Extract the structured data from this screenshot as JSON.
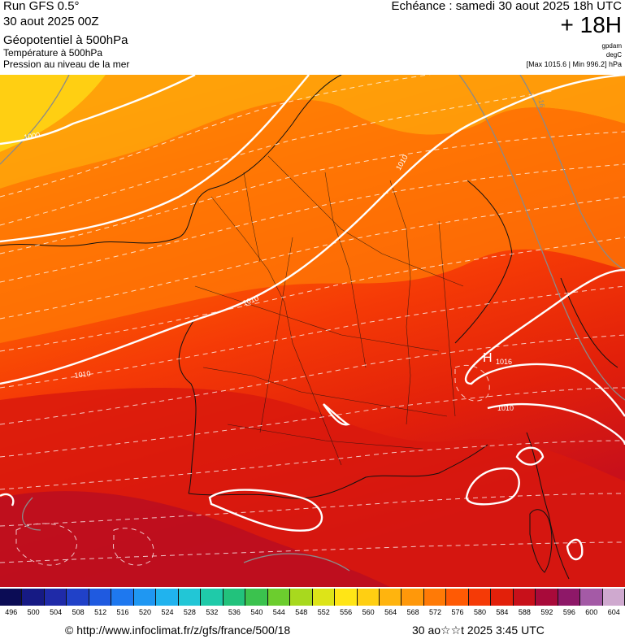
{
  "header": {
    "model": "Run GFS 0.5°",
    "run_date": "30 aout 2025 00Z",
    "field_main": "Géopotentiel à 500hPa",
    "field_temp": "Température à 500hPa",
    "field_pressure": "Pression au niveau de la mer",
    "valid_time": "Echéance : samedi 30 aout 2025 18h UTC",
    "lead": "+ 18H",
    "unit_geo": "gpdam",
    "unit_temp": "degC",
    "pressure_range": "[Max 1015.6 | Min 996.2] hPa"
  },
  "map": {
    "isobar_labels": [
      "1000",
      "1010",
      "1010",
      "1010",
      "1016",
      "1010"
    ],
    "high_marker": "H",
    "isotherm_label": "-16"
  },
  "scale": {
    "labels": [
      "496",
      "500",
      "504",
      "508",
      "512",
      "516",
      "520",
      "524",
      "528",
      "532",
      "536",
      "540",
      "544",
      "548",
      "552",
      "556",
      "560",
      "564",
      "568",
      "572",
      "576",
      "580",
      "584",
      "588",
      "592",
      "596",
      "600",
      "604"
    ],
    "colors": [
      "#0b0c55",
      "#161a84",
      "#1f2aa8",
      "#2041c8",
      "#1f5ae0",
      "#1e78ef",
      "#1f97f2",
      "#20b3ee",
      "#22c6d6",
      "#1fcaa9",
      "#22c27c",
      "#3bc24e",
      "#6ccd2e",
      "#a8d91e",
      "#dde418",
      "#ffe516",
      "#ffcf12",
      "#ffb40e",
      "#ff980a",
      "#ff7a06",
      "#ff5a04",
      "#f53a06",
      "#e2200a",
      "#c8101a",
      "#a80a3a",
      "#8e1868",
      "#a45aa6",
      "#cfa9cf"
    ]
  },
  "footer": {
    "credit": "© http://www.infoclimat.fr/z/gfs/france/500/18",
    "generated": "30 ao☆☆t 2025  3:45 UTC"
  }
}
